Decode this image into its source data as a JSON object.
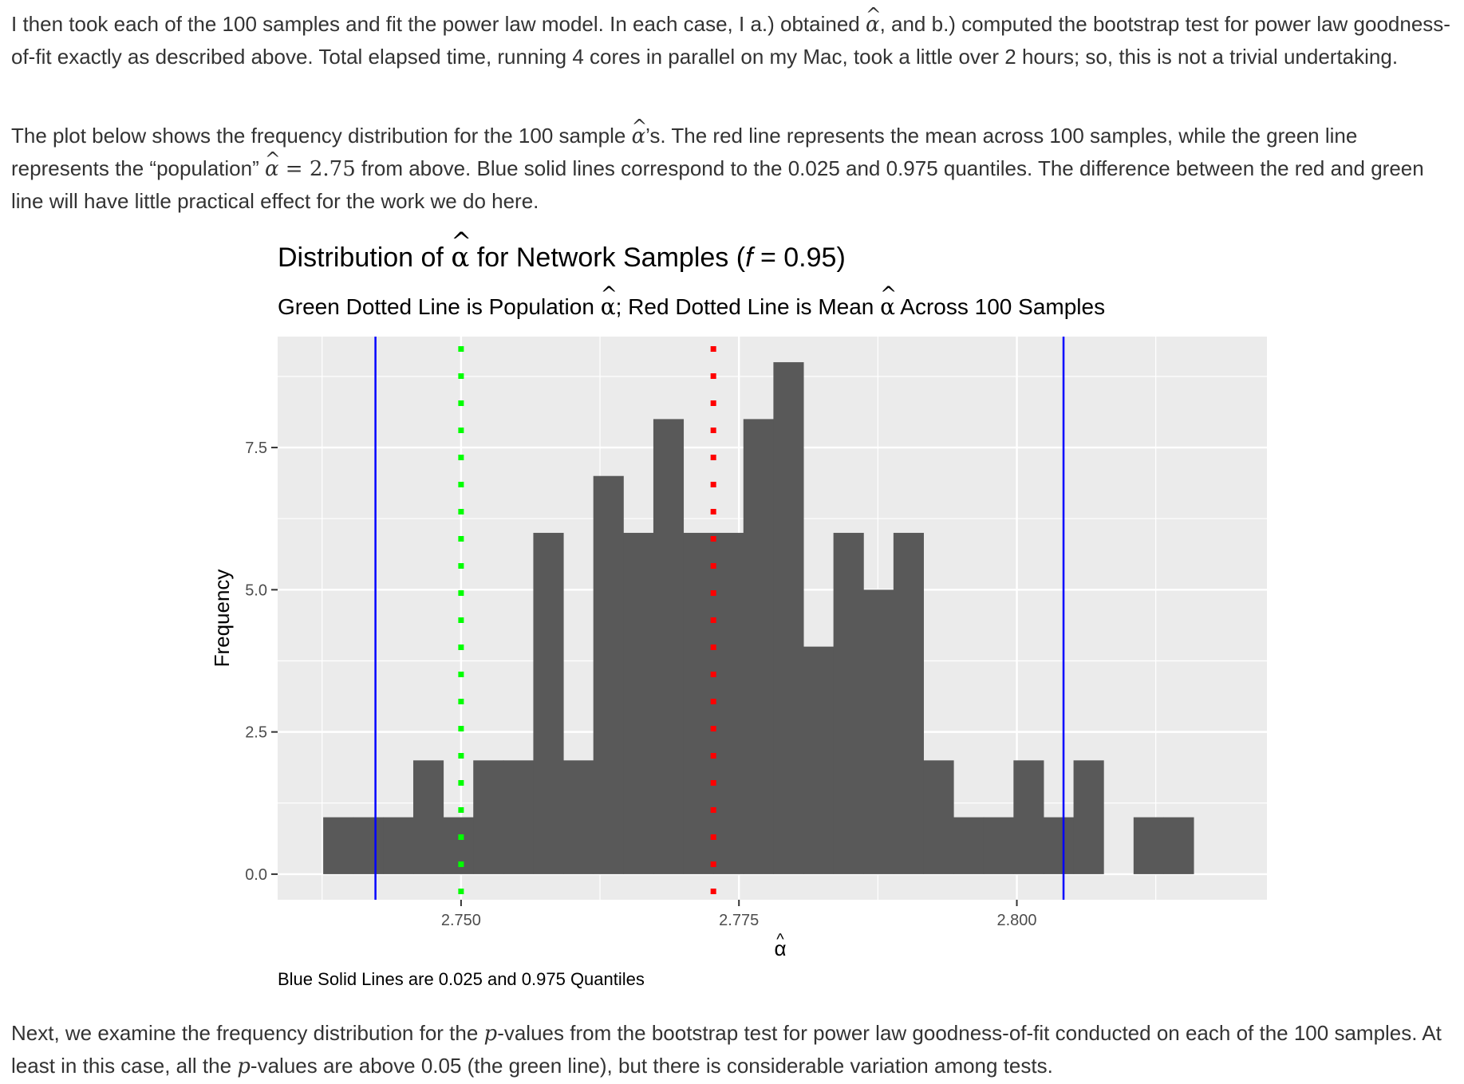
{
  "paragraphs": {
    "p1": [
      {
        "t": "I then took each of the 100 samples and fit the power law model. In each case, I a.) obtained "
      },
      {
        "t": "α",
        "math": "widehat"
      },
      {
        "t": ", and b.) computed the bootstrap test for power law goodness-of-fit exactly as described above. Total elapsed time, running 4 cores in parallel on my Mac, took a little over 2 hours; so, this is not a trivial undertaking."
      }
    ],
    "p2": [
      {
        "t": "The plot below shows the frequency distribution for the 100 sample "
      },
      {
        "t": "α",
        "math": "widehat"
      },
      {
        "t": "’s. The red line represents the mean across 100 samples, while the green line represents the “population” "
      },
      {
        "t": "α",
        "math": "widehat"
      },
      {
        "t": " = 2.75",
        "math": "upright"
      },
      {
        "t": " from above. Blue solid lines correspond to the 0.025 and 0.975 quantiles. The difference between the red and green line will have little practical effect for the work we do here."
      }
    ],
    "p3": [
      {
        "t": "Next, we examine the frequency distribution for the "
      },
      {
        "t": "p",
        "math": "italic"
      },
      {
        "t": "-values from the bootstrap test for power law goodness-of-fit conducted on each of the 100 samples. At least in this case, all the "
      },
      {
        "t": "p",
        "math": "italic"
      },
      {
        "t": "-values are above 0.05 (the green line), but there is considerable variation among tests."
      }
    ]
  },
  "chart_data": {
    "type": "bar",
    "title_parts": [
      "Distribution of ",
      "α",
      " for Network Samples (",
      "f",
      " = 0.95)"
    ],
    "subtitle_parts": [
      "Green Dotted Line is Population ",
      "α",
      "; Red Dotted Line is Mean ",
      "α",
      " Across 100 Samples"
    ],
    "caption": "Blue Solid Lines are 0.025 and 0.975 Quantiles",
    "xlabel": "α",
    "ylabel": "Frequency",
    "x_ticks": [
      "2.750",
      "2.775",
      "2.800"
    ],
    "x_tick_values": [
      2.75,
      2.775,
      2.8
    ],
    "y_ticks": [
      "0.0",
      "2.5",
      "5.0",
      "7.5"
    ],
    "y_tick_values": [
      0,
      2.5,
      5,
      7.5
    ],
    "xlim": [
      2.7335,
      2.8225
    ],
    "ylim": [
      -0.45,
      9.45
    ],
    "bin_width": 0.0027,
    "bin_starts": [
      2.7376,
      2.7403,
      2.743,
      2.7457,
      2.7484,
      2.7511,
      2.7538,
      2.7565,
      2.7592,
      2.7619,
      2.7646,
      2.7673,
      2.77,
      2.7727,
      2.7754,
      2.7781,
      2.7808,
      2.7835,
      2.7862,
      2.7889,
      2.7916,
      2.7943,
      2.797,
      2.7997,
      2.8024,
      2.8051,
      2.8078,
      2.8105,
      2.8132
    ],
    "values": [
      1,
      1,
      1,
      2,
      1,
      2,
      2,
      6,
      2,
      7,
      6,
      8,
      6,
      6,
      8,
      9,
      4,
      6,
      5,
      6,
      2,
      1,
      1,
      2,
      1,
      2,
      0,
      1,
      1
    ],
    "population_alpha": 2.75,
    "mean_alpha": 2.7727,
    "quantiles": [
      2.7423,
      2.8042
    ],
    "colors": {
      "panel": "#ebebeb",
      "grid": "#ffffff",
      "bar": "#595959",
      "population_line": "#00ff00",
      "mean_line": "#ff0000",
      "quantile_line": "#0000ff"
    },
    "grid": true,
    "legend": "none"
  }
}
